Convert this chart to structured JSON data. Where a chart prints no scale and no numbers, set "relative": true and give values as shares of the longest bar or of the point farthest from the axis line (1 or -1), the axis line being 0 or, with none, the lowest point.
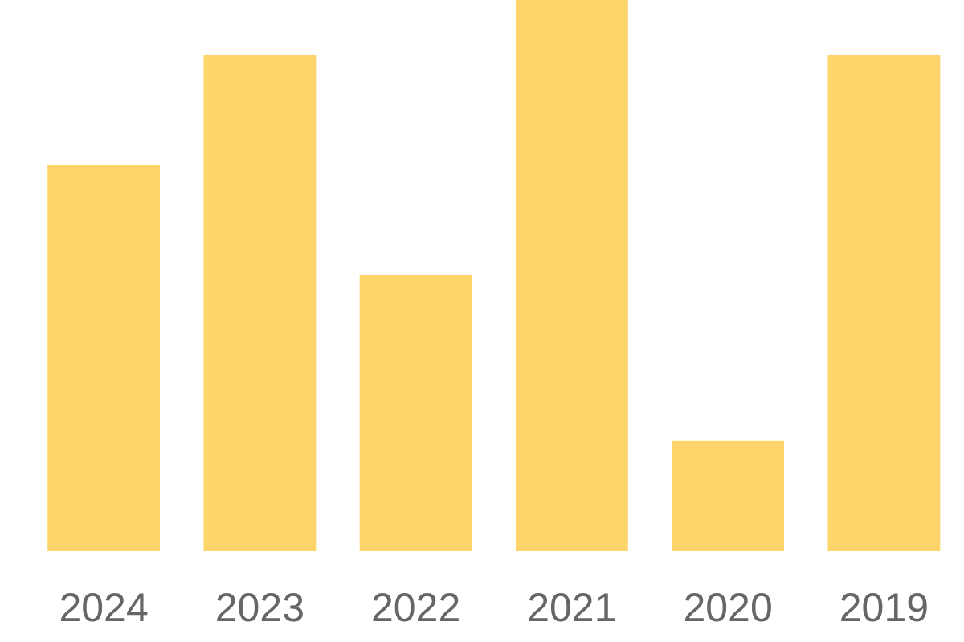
{
  "chart_data": {
    "type": "bar",
    "categories": [
      "2024",
      "2023",
      "2022",
      "2021",
      "2020",
      "2019"
    ],
    "values": [
      0.7,
      0.9,
      0.5,
      1,
      0.2,
      0.9
    ],
    "color": "#fdd56a",
    "relative": true
  }
}
